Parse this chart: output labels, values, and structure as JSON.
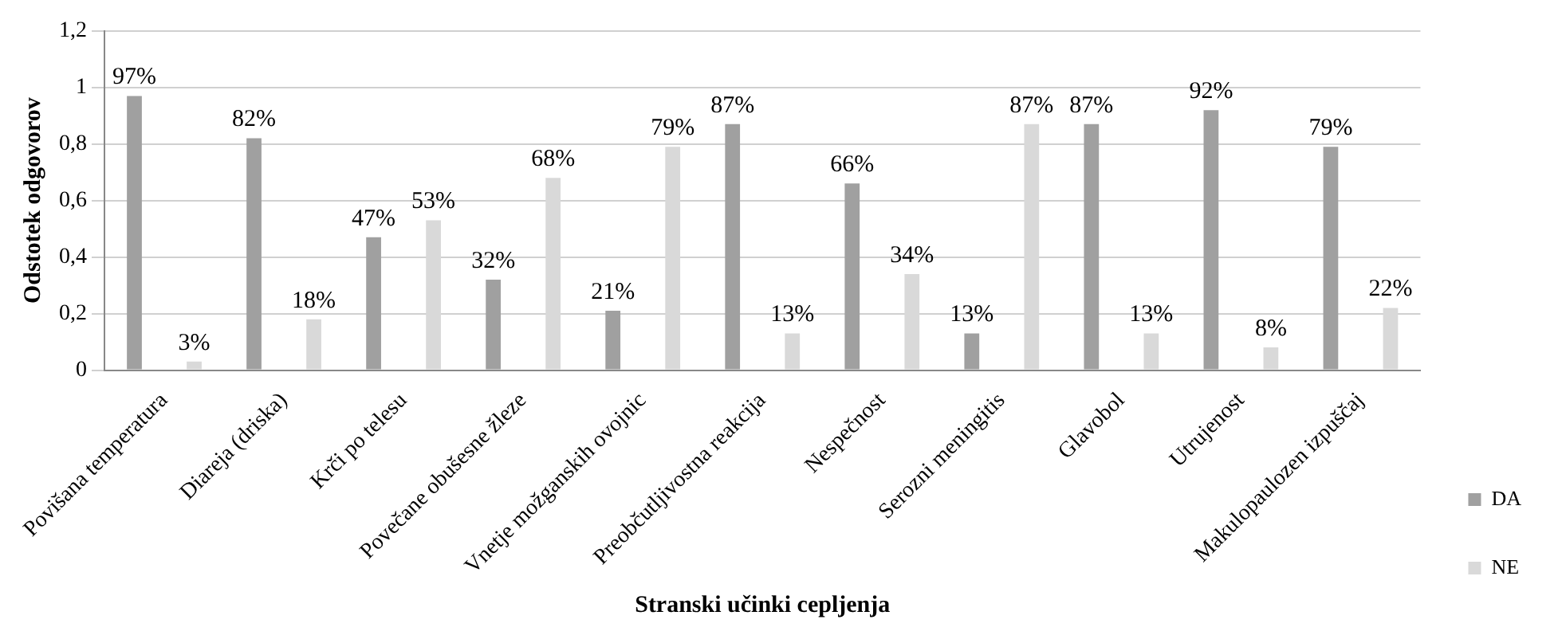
{
  "chart_data": {
    "type": "bar",
    "xlabel": "Stranski učinki cepljenja",
    "ylabel": "Odstotek odgovorov",
    "categories": [
      "Povišana temperatura",
      "Diareja (driska)",
      "Krči po telesu",
      "Povečane obušesne žleze",
      "Vnetje možganskih ovojnic",
      "Preobčutljivostna reakcija",
      "Nespečnost",
      "Serozni meningitis",
      "Glavobol",
      "Utrujenost",
      "Makulopaulozen izpuščaj"
    ],
    "series": [
      {
        "name": "DA",
        "color": "#a0a0a0",
        "values": [
          0.97,
          0.82,
          0.47,
          0.32,
          0.21,
          0.87,
          0.66,
          0.13,
          0.87,
          0.92,
          0.79
        ],
        "value_labels": [
          "97%",
          "82%",
          "47%",
          "32%",
          "21%",
          "87%",
          "66%",
          "13%",
          "87%",
          "92%",
          "79%"
        ]
      },
      {
        "name": "NE",
        "color": "#d9d9d9",
        "values": [
          0.03,
          0.18,
          0.53,
          0.68,
          0.79,
          0.13,
          0.34,
          0.87,
          0.13,
          0.08,
          0.22
        ],
        "value_labels": [
          "3%",
          "18%",
          "53%",
          "68%",
          "79%",
          "13%",
          "34%",
          "87%",
          "13%",
          "8%",
          "22%"
        ]
      }
    ],
    "ylim": [
      0,
      1.2
    ],
    "yticks": [
      0,
      {
        "value": 0.2,
        "label": "0,2"
      },
      {
        "value": 0.4,
        "label": "0,4"
      },
      {
        "value": 0.6,
        "label": "0,6"
      },
      {
        "value": 0.8,
        "label": "0,8"
      },
      1,
      {
        "value": 1.2,
        "label": "1,2"
      }
    ],
    "grid": "y",
    "legend": "right"
  }
}
